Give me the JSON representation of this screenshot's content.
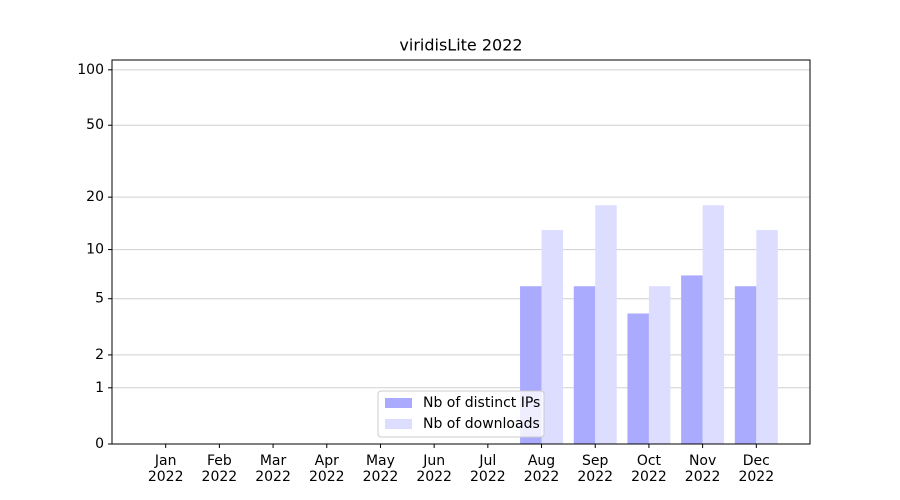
{
  "chart_data": {
    "type": "bar",
    "title": "viridisLite 2022",
    "categories": [
      "Jan 2022",
      "Feb 2022",
      "Mar 2022",
      "Apr 2022",
      "May 2022",
      "Jun 2022",
      "Jul 2022",
      "Aug 2022",
      "Sep 2022",
      "Oct 2022",
      "Nov 2022",
      "Dec 2022"
    ],
    "series": [
      {
        "name": "Nb of distinct IPs",
        "color": "#aaaaff",
        "values": [
          0,
          0,
          0,
          0,
          0,
          0,
          0,
          6,
          6,
          4,
          7,
          6
        ]
      },
      {
        "name": "Nb of downloads",
        "color": "#ddddff",
        "values": [
          0,
          0,
          0,
          0,
          0,
          0,
          0,
          13,
          18,
          6,
          18,
          13
        ]
      }
    ],
    "yscale": "symlog",
    "ylim": [
      0,
      113
    ],
    "yticks": [
      0,
      1,
      2,
      5,
      10,
      20,
      50,
      100
    ],
    "grid": true,
    "legend": "lower center"
  }
}
